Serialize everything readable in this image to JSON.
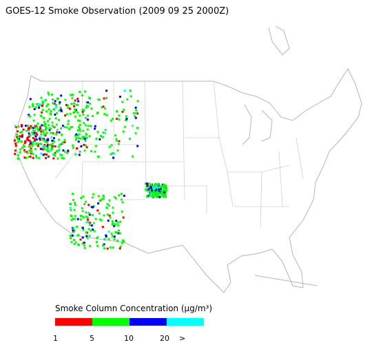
{
  "title": "GOES-12 Smoke Observation (2009 09 25  2000Z)",
  "legend": {
    "title": "Smoke Column Concentration (μg/m³)",
    "colors": [
      "#ff0000",
      "#00ff00",
      "#0000ff",
      "#00ffff"
    ],
    "labels": [
      "1",
      "5",
      "10",
      "20",
      ">"
    ]
  }
}
